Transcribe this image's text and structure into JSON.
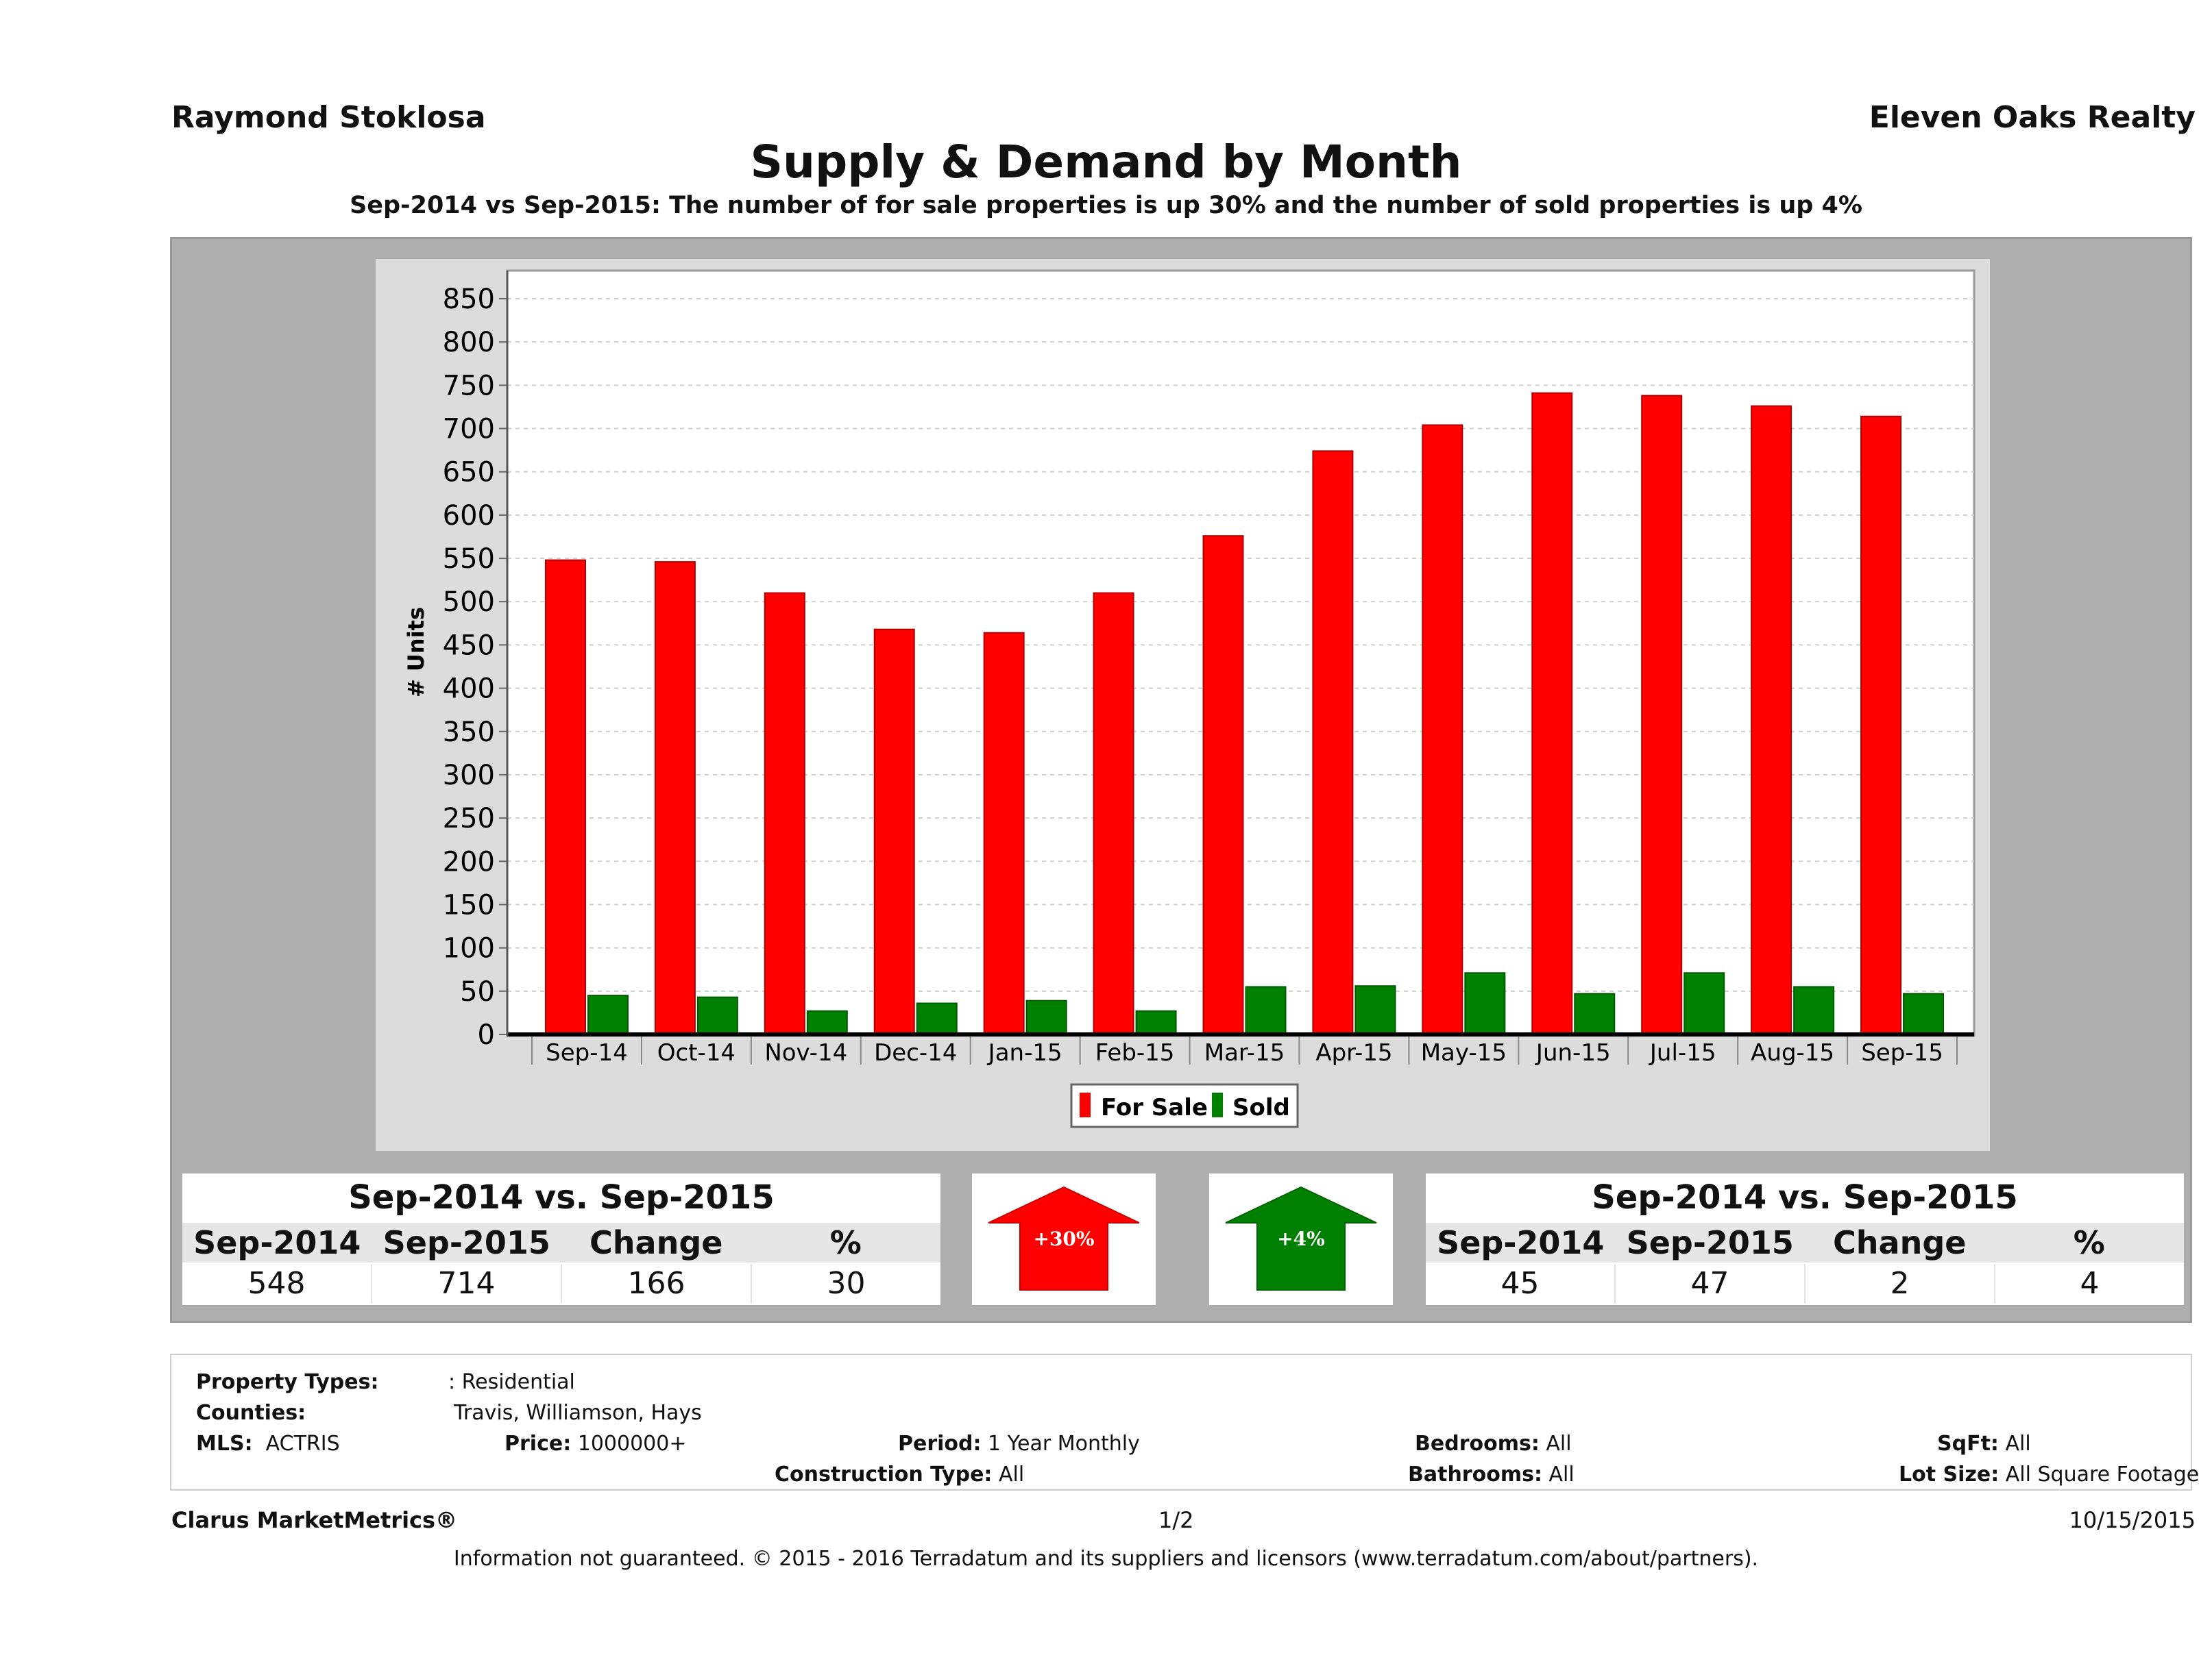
{
  "header": {
    "agent": "Raymond Stoklosa",
    "company": "Eleven Oaks Realty",
    "title": "Supply & Demand by Month",
    "subtitle": "Sep-2014 vs Sep-2015: The number of for sale properties is up 30% and the number of sold properties is up 4%"
  },
  "chart_data": {
    "type": "bar",
    "categories": [
      "Sep-14",
      "Oct-14",
      "Nov-14",
      "Dec-14",
      "Jan-15",
      "Feb-15",
      "Mar-15",
      "Apr-15",
      "May-15",
      "Jun-15",
      "Jul-15",
      "Aug-15",
      "Sep-15"
    ],
    "series": [
      {
        "name": "For Sale",
        "color": "#ff0000",
        "values": [
          548,
          546,
          510,
          468,
          464,
          510,
          576,
          674,
          704,
          741,
          738,
          726,
          714
        ]
      },
      {
        "name": "Sold",
        "color": "#008000",
        "values": [
          45,
          43,
          27,
          36,
          39,
          27,
          55,
          56,
          71,
          47,
          71,
          55,
          47
        ]
      }
    ],
    "ylabel": "# Units",
    "ylim": [
      0,
      850
    ],
    "yticks": [
      0,
      50,
      100,
      150,
      200,
      250,
      300,
      350,
      400,
      450,
      500,
      550,
      600,
      650,
      700,
      750,
      800,
      850
    ],
    "grid": true,
    "legend": "bottom-center"
  },
  "for_sale_summary": {
    "title": "Sep-2014 vs. Sep-2015",
    "headers": [
      "Sep-2014",
      "Sep-2015",
      "Change",
      "%"
    ],
    "values": [
      "548",
      "714",
      "166",
      "30"
    ],
    "badge": "+30%",
    "badge_color": "#ff0000"
  },
  "sold_summary": {
    "title": "Sep-2014 vs. Sep-2015",
    "headers": [
      "Sep-2014",
      "Sep-2015",
      "Change",
      "%"
    ],
    "values": [
      "45",
      "47",
      "2",
      "4"
    ],
    "badge": "+4%",
    "badge_color": "#008000"
  },
  "criteria": {
    "property_types_label": "Property Types:",
    "property_types_value": ": Residential",
    "counties_label": "Counties:",
    "counties_value": "Travis, Williamson, Hays",
    "mls_label": "MLS:",
    "mls_value": "ACTRIS",
    "price_label": "Price:",
    "price_value": "1000000+",
    "period_label": "Period:",
    "period_value": "1 Year Monthly",
    "construction_label": "Construction Type:",
    "construction_value": "All",
    "bedrooms_label": "Bedrooms:",
    "bedrooms_value": "All",
    "bathrooms_label": "Bathrooms:",
    "bathrooms_value": "All",
    "sqft_label": "SqFt:",
    "sqft_value": "All",
    "lot_label": "Lot Size:",
    "lot_value": "All Square Footage"
  },
  "footer": {
    "brand": "Clarus MarketMetrics®",
    "page": "1/2",
    "date": "10/15/2015",
    "disclaimer": "Information not guaranteed. © 2015 - 2016 Terradatum and its suppliers and licensors (www.terradatum.com/about/partners)."
  }
}
